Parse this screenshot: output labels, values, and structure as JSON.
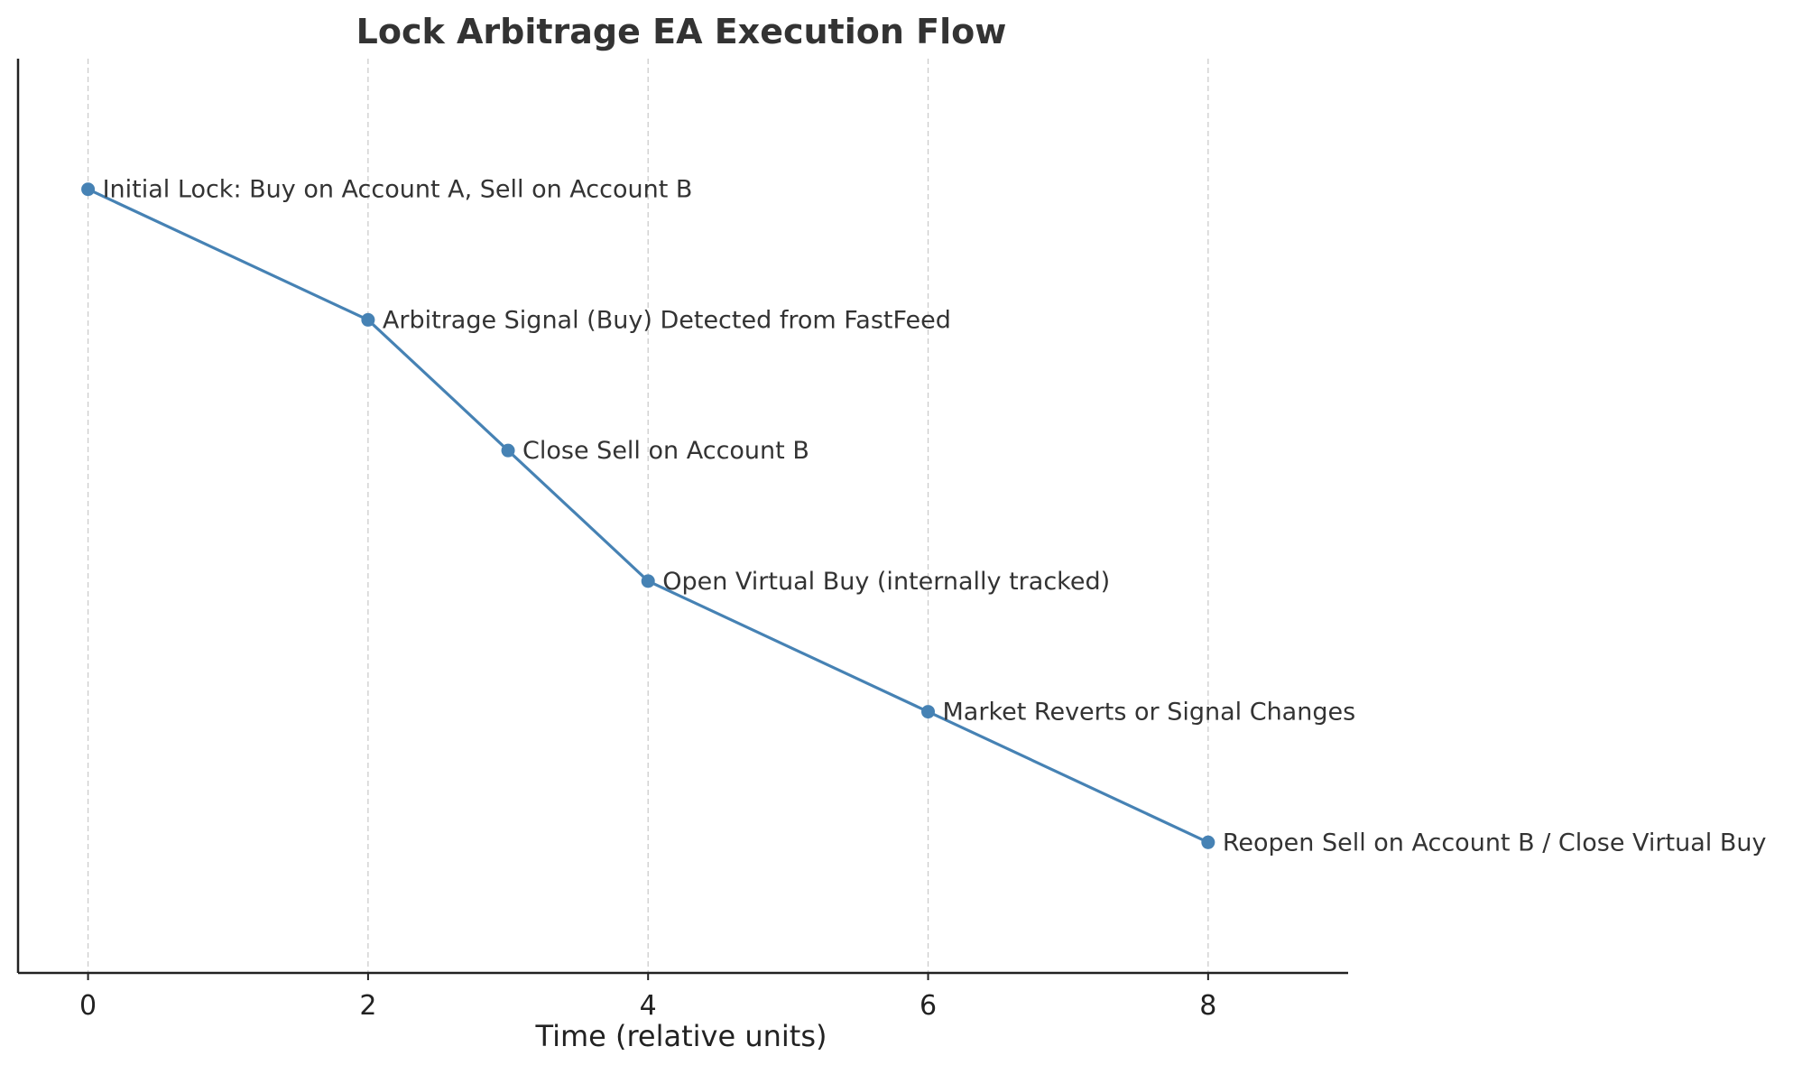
{
  "chart_data": {
    "type": "line",
    "title": "Lock Arbitrage EA Execution Flow",
    "xlabel": "Time (relative units)",
    "ylabel": "",
    "xlim": [
      -0.5,
      9
    ],
    "ylim": [
      -1,
      6
    ],
    "xticks": [
      0,
      2,
      4,
      6,
      8
    ],
    "grid": "x-dashed",
    "color": "#4682b4",
    "x": [
      0,
      2,
      3,
      4,
      6,
      8
    ],
    "y": [
      5,
      4,
      3,
      2,
      1,
      0
    ],
    "annotations": [
      "Initial Lock: Buy on Account A, Sell on Account B",
      "Arbitrage Signal (Buy) Detected from FastFeed",
      "Close Sell on Account B",
      "Open Virtual Buy (internally tracked)",
      "Market Reverts or Signal Changes",
      "Reopen Sell on Account B / Close Virtual Buy"
    ]
  }
}
